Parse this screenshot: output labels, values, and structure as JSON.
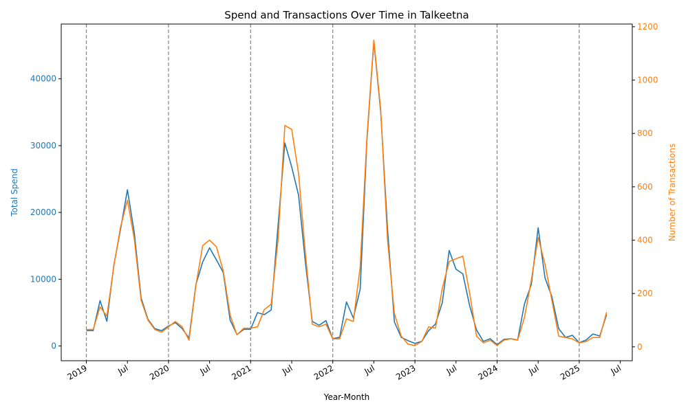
{
  "chart_data": {
    "type": "line",
    "title": "Spend and Transactions Over Time in Talkeetna",
    "xlabel": "Year-Month",
    "ylabel_left": "Total Spend",
    "ylabel_right": "Number of Transactions",
    "colors": {
      "spend": "#1f77b4",
      "transactions": "#ff7f0e",
      "vline": "#808080"
    },
    "x_tick_labels": [
      {
        "date": "2019-01",
        "label": "2019"
      },
      {
        "date": "2019-07",
        "label": "Jul"
      },
      {
        "date": "2020-01",
        "label": "2020"
      },
      {
        "date": "2020-07",
        "label": "Jul"
      },
      {
        "date": "2021-01",
        "label": "2021"
      },
      {
        "date": "2021-07",
        "label": "Jul"
      },
      {
        "date": "2022-01",
        "label": "2022"
      },
      {
        "date": "2022-07",
        "label": "Jul"
      },
      {
        "date": "2023-01",
        "label": "2023"
      },
      {
        "date": "2023-07",
        "label": "Jul"
      },
      {
        "date": "2024-01",
        "label": "2024"
      },
      {
        "date": "2024-07",
        "label": "Jul"
      },
      {
        "date": "2025-01",
        "label": "2025"
      },
      {
        "date": "2025-07",
        "label": "Jul"
      }
    ],
    "y_left_ticks": [
      "0",
      "10000",
      "20000",
      "30000",
      "40000"
    ],
    "y_right_ticks": [
      "0",
      "200",
      "400",
      "600",
      "800",
      "1000",
      "1200"
    ],
    "ylim_left": [
      -2200,
      48200
    ],
    "ylim_right": [
      -52,
      1210
    ],
    "vlines": [
      "2019-01",
      "2020-01",
      "2021-01",
      "2022-01",
      "2023-01",
      "2024-01",
      "2025-01"
    ],
    "x": [
      "2019-01",
      "2019-02",
      "2019-03",
      "2019-04",
      "2019-05",
      "2019-06",
      "2019-07",
      "2019-08",
      "2019-09",
      "2019-10",
      "2019-11",
      "2019-12",
      "2020-01",
      "2020-02",
      "2020-03",
      "2020-04",
      "2020-05",
      "2020-06",
      "2020-07",
      "2020-08",
      "2020-09",
      "2020-10",
      "2020-11",
      "2020-12",
      "2021-01",
      "2021-02",
      "2021-03",
      "2021-04",
      "2021-05",
      "2021-06",
      "2021-07",
      "2021-08",
      "2021-09",
      "2021-10",
      "2021-11",
      "2021-12",
      "2022-01",
      "2022-02",
      "2022-03",
      "2022-04",
      "2022-05",
      "2022-06",
      "2022-07",
      "2022-08",
      "2022-09",
      "2022-10",
      "2022-11",
      "2022-12",
      "2023-01",
      "2023-02",
      "2023-03",
      "2023-04",
      "2023-05",
      "2023-06",
      "2023-07",
      "2023-08",
      "2023-09",
      "2023-10",
      "2023-11",
      "2023-12",
      "2024-01",
      "2024-02",
      "2024-03",
      "2024-04",
      "2024-05",
      "2024-06",
      "2024-07",
      "2024-08",
      "2024-09",
      "2024-10",
      "2024-11",
      "2024-12",
      "2025-01",
      "2025-02",
      "2025-03",
      "2025-04",
      "2025-05"
    ],
    "series": [
      {
        "name": "Total Spend",
        "axis": "left",
        "values": [
          2300,
          2300,
          6800,
          3700,
          12000,
          17500,
          23400,
          17000,
          7200,
          4000,
          2600,
          2300,
          3000,
          3500,
          2600,
          1200,
          9200,
          12600,
          14700,
          12900,
          11000,
          3900,
          1700,
          2500,
          2500,
          5000,
          4700,
          5400,
          18000,
          30400,
          26800,
          22600,
          12500,
          3700,
          3100,
          3800,
          1100,
          1300,
          6600,
          4200,
          8500,
          31000,
          45600,
          35000,
          17500,
          3600,
          1300,
          800,
          400,
          700,
          2300,
          3300,
          6500,
          14300,
          11500,
          10800,
          6000,
          2400,
          700,
          1100,
          200,
          1000,
          1100,
          900,
          6300,
          9200,
          17700,
          10200,
          7400,
          2600,
          1300,
          1600,
          500,
          900,
          1800,
          1500,
          4700
        ]
      },
      {
        "name": "Number of Transactions",
        "axis": "right",
        "values": [
          65,
          65,
          150,
          115,
          300,
          450,
          550,
          405,
          175,
          100,
          65,
          55,
          75,
          95,
          75,
          25,
          230,
          380,
          400,
          375,
          285,
          120,
          45,
          70,
          70,
          75,
          140,
          160,
          400,
          830,
          815,
          650,
          350,
          85,
          75,
          85,
          30,
          30,
          105,
          95,
          300,
          790,
          1150,
          890,
          400,
          125,
          40,
          10,
          5,
          20,
          75,
          70,
          220,
          320,
          330,
          340,
          200,
          40,
          15,
          25,
          5,
          25,
          30,
          25,
          110,
          250,
          410,
          310,
          175,
          40,
          35,
          30,
          15,
          20,
          35,
          35,
          130
        ]
      }
    ]
  }
}
